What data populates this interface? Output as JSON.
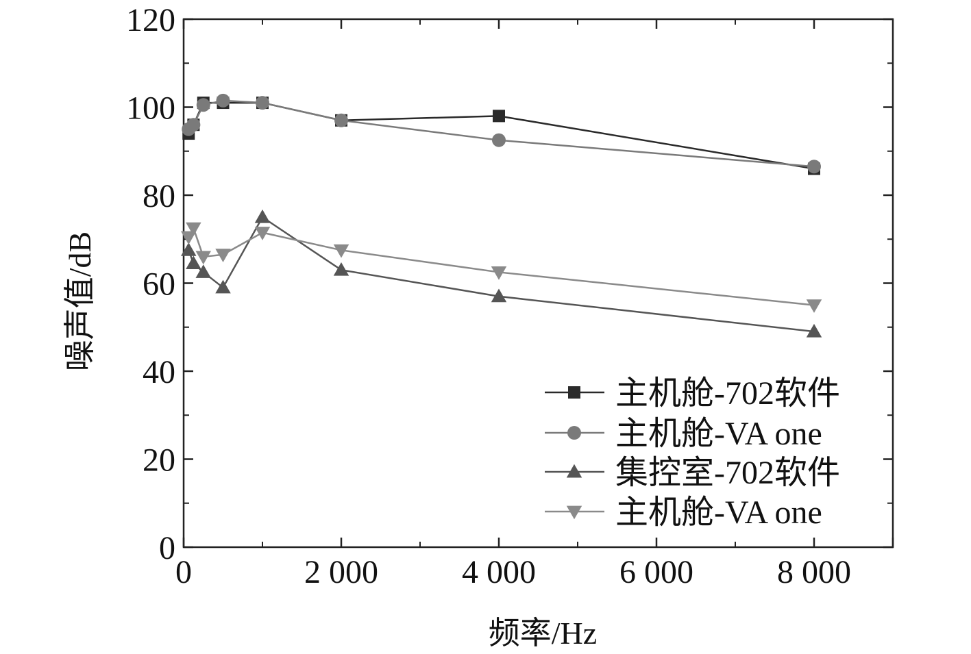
{
  "chart_data": {
    "type": "line",
    "title": "",
    "xlabel": "频率/Hz",
    "ylabel": "噪声值/dB",
    "xlim": [
      0,
      9000
    ],
    "ylim": [
      0,
      120
    ],
    "x_ticks": [
      0,
      2000,
      4000,
      6000,
      8000
    ],
    "x_tick_labels": [
      "0",
      "2 000",
      "4 000",
      "6 000",
      "8 000"
    ],
    "y_ticks": [
      0,
      20,
      40,
      60,
      80,
      100,
      120
    ],
    "y_tick_labels": [
      "0",
      "20",
      "40",
      "60",
      "80",
      "100",
      "120"
    ],
    "grid": false,
    "legend_position": "bottom-right",
    "series": [
      {
        "name": "主机舱-702软件",
        "marker": "square",
        "color": "#2a2a2a",
        "x": [
          63,
          125,
          250,
          500,
          1000,
          2000,
          4000,
          8000
        ],
        "values": [
          94,
          96,
          101,
          101,
          101,
          97,
          98,
          86
        ]
      },
      {
        "name": "主机舱-VA one",
        "marker": "circle",
        "color": "#7a7a7a",
        "x": [
          63,
          125,
          250,
          500,
          1000,
          2000,
          4000,
          8000
        ],
        "values": [
          95,
          96,
          100.5,
          101.5,
          101,
          97,
          92.5,
          86.5
        ]
      },
      {
        "name": "集控室-702软件",
        "marker": "triangle-up",
        "color": "#555555",
        "x": [
          63,
          125,
          250,
          500,
          1000,
          2000,
          4000,
          8000
        ],
        "values": [
          67.5,
          64.5,
          62.5,
          59,
          75,
          63,
          57,
          49
        ]
      },
      {
        "name": "主机舱-VA one",
        "marker": "triangle-down",
        "color": "#8a8a8a",
        "x": [
          63,
          125,
          250,
          500,
          1000,
          2000,
          4000,
          8000
        ],
        "values": [
          70.5,
          72.5,
          66,
          66.5,
          71.5,
          67.5,
          62.5,
          55
        ]
      }
    ]
  }
}
